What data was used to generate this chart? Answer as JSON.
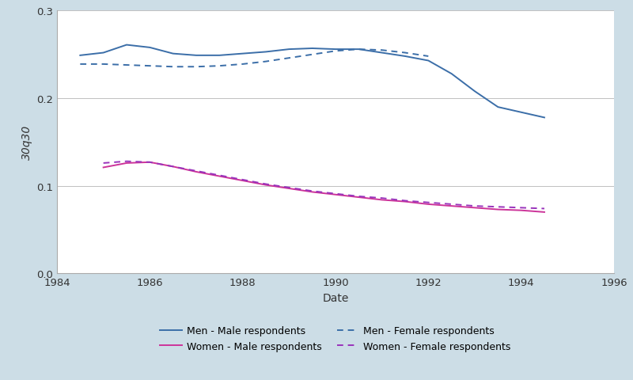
{
  "background_color": "#ccdde6",
  "plot_background": "#ffffff",
  "blue_solid_x": [
    1984.5,
    1985.0,
    1985.5,
    1986.0,
    1986.5,
    1987.0,
    1987.5,
    1988.0,
    1988.5,
    1989.0,
    1989.5,
    1990.0,
    1990.5,
    1991.0,
    1991.5,
    1992.0,
    1992.5,
    1993.0,
    1993.5,
    1994.5
  ],
  "blue_solid_y": [
    0.249,
    0.252,
    0.261,
    0.258,
    0.251,
    0.249,
    0.249,
    0.251,
    0.253,
    0.256,
    0.257,
    0.256,
    0.256,
    0.252,
    0.248,
    0.243,
    0.228,
    0.208,
    0.19,
    0.178
  ],
  "blue_dash_x": [
    1984.5,
    1985.0,
    1985.5,
    1986.0,
    1986.5,
    1987.0,
    1987.5,
    1988.0,
    1988.5,
    1989.0,
    1989.5,
    1990.0,
    1990.5,
    1991.0,
    1991.5,
    1992.0
  ],
  "blue_dash_y": [
    0.239,
    0.239,
    0.238,
    0.237,
    0.236,
    0.236,
    0.237,
    0.239,
    0.242,
    0.246,
    0.25,
    0.254,
    0.256,
    0.255,
    0.252,
    0.248
  ],
  "mag_solid_x": [
    1985.0,
    1985.5,
    1986.0,
    1986.5,
    1987.0,
    1987.5,
    1988.0,
    1988.5,
    1989.0,
    1989.5,
    1990.0,
    1990.5,
    1991.0,
    1991.5,
    1992.0,
    1992.5,
    1993.0,
    1993.5,
    1994.0,
    1994.5
  ],
  "mag_solid_y": [
    0.121,
    0.126,
    0.127,
    0.122,
    0.116,
    0.111,
    0.106,
    0.101,
    0.097,
    0.093,
    0.09,
    0.087,
    0.084,
    0.082,
    0.079,
    0.077,
    0.075,
    0.073,
    0.072,
    0.07
  ],
  "mag_dash_x": [
    1985.0,
    1985.5,
    1986.0,
    1986.5,
    1987.0,
    1987.5,
    1988.0,
    1988.5,
    1989.0,
    1989.5,
    1990.0,
    1990.5,
    1991.0,
    1991.5,
    1992.0,
    1992.5,
    1993.0,
    1993.5,
    1994.0,
    1994.5
  ],
  "mag_dash_y": [
    0.126,
    0.128,
    0.127,
    0.122,
    0.117,
    0.112,
    0.107,
    0.102,
    0.098,
    0.094,
    0.091,
    0.088,
    0.086,
    0.083,
    0.081,
    0.079,
    0.077,
    0.076,
    0.075,
    0.074
  ],
  "blue_color": "#3b6ea8",
  "magenta_solid_color": "#cc3399",
  "magenta_dash_color": "#9933bb",
  "xlim": [
    1984,
    1996
  ],
  "ylim": [
    0.0,
    0.3
  ],
  "xticks": [
    1984,
    1986,
    1988,
    1990,
    1992,
    1994,
    1996
  ],
  "yticks": [
    0.0,
    0.1,
    0.2,
    0.3
  ],
  "xlabel": "Date",
  "ylabel": "30q30",
  "grid_color": "#c0c0c0",
  "fig_width": 8.0,
  "fig_height": 4.81,
  "dpi": 100
}
